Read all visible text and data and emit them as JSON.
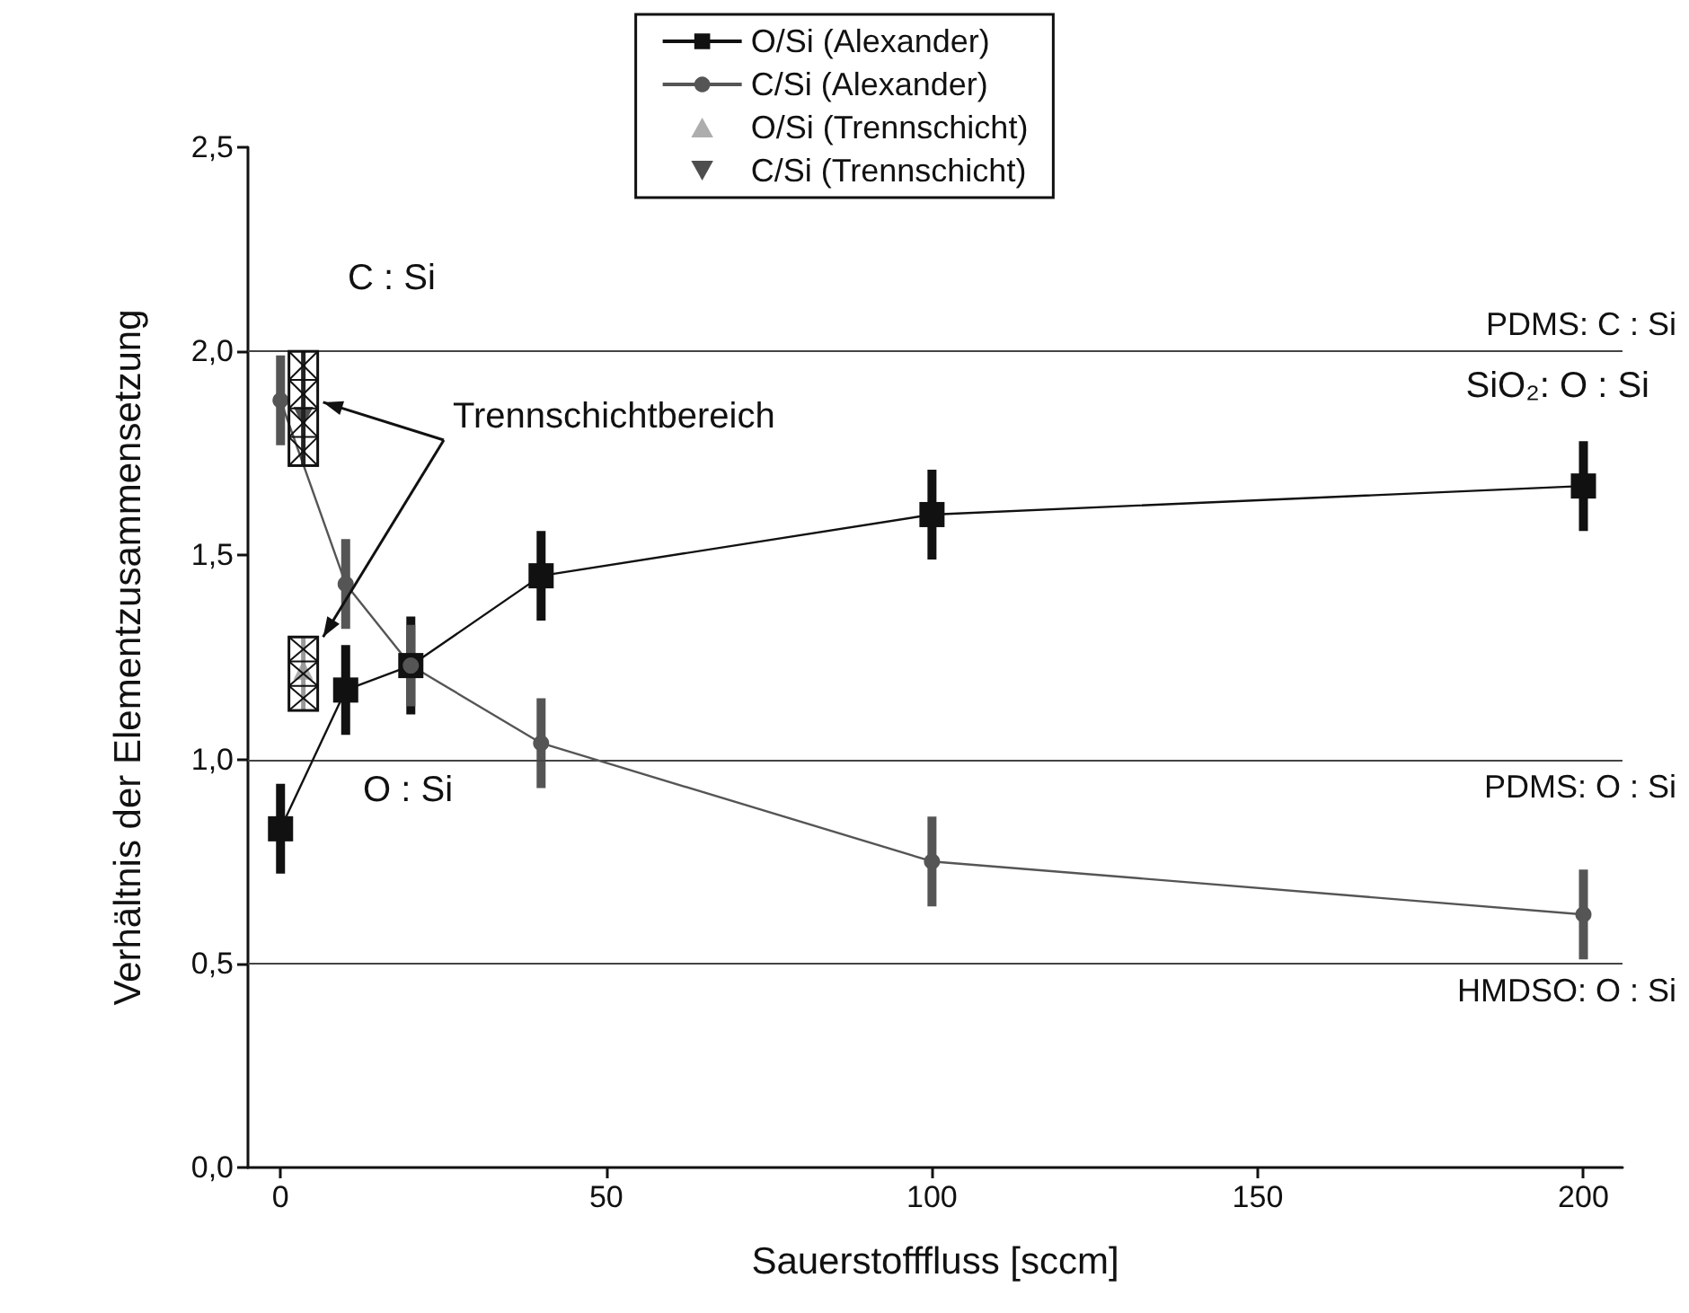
{
  "chart_data": {
    "type": "line",
    "xlabel": "Sauerstofffluss [sccm]",
    "ylabel": "Verhältnis der Elementzusammensetzung",
    "xlim": [
      -5,
      206
    ],
    "xticks": [
      0,
      50,
      100,
      150,
      200
    ],
    "ylim": [
      0,
      2.5
    ],
    "yticks": [
      {
        "value": 0,
        "label": "0,0"
      },
      {
        "value": 0.5,
        "label": "0,5"
      },
      {
        "value": 1,
        "label": "1,0"
      },
      {
        "value": 1.5,
        "label": "1,5"
      },
      {
        "value": 2,
        "label": "2,0"
      },
      {
        "value": 2.5,
        "label": "2,5"
      }
    ],
    "legend": "top",
    "grid": false,
    "series": [
      {
        "name": "O/Si (Alexander)",
        "color": "#111111",
        "marker": "square",
        "x": [
          0,
          10,
          20,
          40,
          100,
          200
        ],
        "values": [
          0.83,
          1.17,
          1.23,
          1.45,
          1.6,
          1.67
        ],
        "errors": [
          0.11,
          0.11,
          0.12,
          0.11,
          0.11,
          0.11
        ]
      },
      {
        "name": "C/Si (Alexander)",
        "color": "#555555",
        "marker": "circle",
        "x": [
          0,
          10,
          20,
          40,
          100,
          200
        ],
        "values": [
          1.88,
          1.43,
          1.23,
          1.04,
          0.75,
          0.62
        ],
        "errors": [
          0.11,
          0.11,
          0.1,
          0.11,
          0.11,
          0.11
        ]
      },
      {
        "name": "O/Si (Trennschicht)",
        "type": "scatter",
        "color": "#999999",
        "marker": "triangle",
        "x": [
          3.5
        ],
        "values": [
          1.22
        ],
        "errors": [
          [
            1.12,
            1.3
          ]
        ]
      },
      {
        "name": "C/Si (Trennschicht)",
        "type": "scatter",
        "color": "#222222",
        "marker": "triangle_down",
        "x": [
          3.5
        ],
        "values": [
          1.84
        ],
        "errors": [
          [
            1.72,
            2.0
          ]
        ]
      }
    ],
    "ref_lines": [
      {
        "axis": "y",
        "value": 2,
        "label": "PDMS: C : Si"
      },
      {
        "axis": "y",
        "value": 1,
        "label": "PDMS: O : Si"
      },
      {
        "axis": "y",
        "value": 0.5,
        "label": "HMDSO: O : Si"
      }
    ],
    "annotations": [
      "C : Si",
      "O : Si",
      "Trennschichtbereich",
      "SiO₂: O : Si"
    ]
  }
}
